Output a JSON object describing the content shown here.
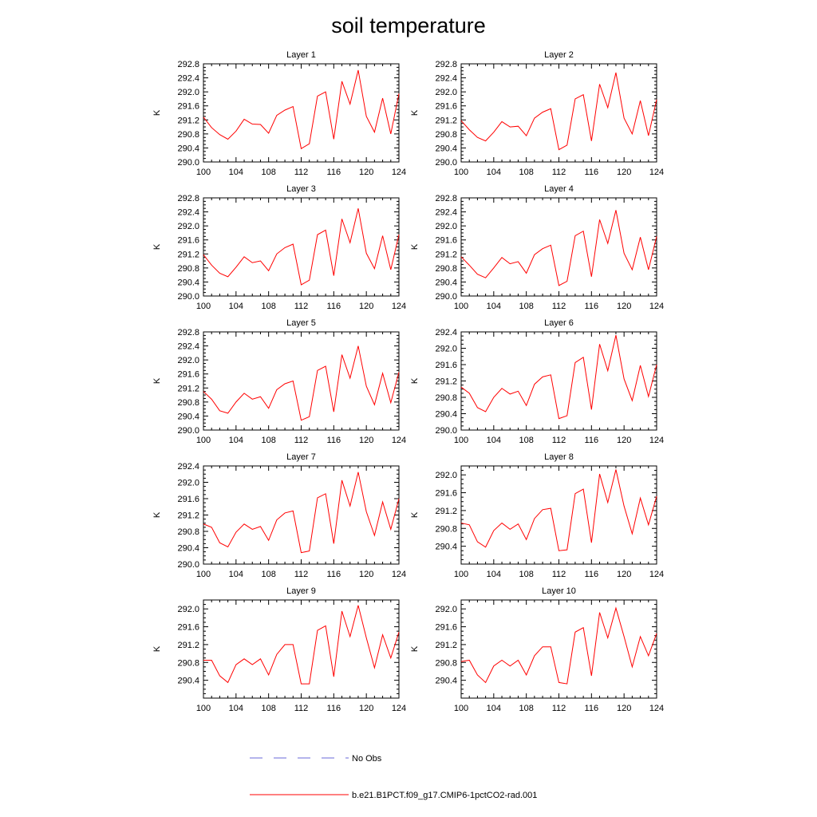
{
  "figure": {
    "title": "soil temperature",
    "legend": [
      {
        "label": "No Obs",
        "color": "#6a6ad8",
        "dash": "dashed"
      },
      {
        "label": "b.e21.B1PCT.f09_g17.CMIP6-1pctCO2-rad.001",
        "color": "#ff0000",
        "dash": "solid"
      }
    ]
  },
  "chart_data": [
    {
      "type": "line",
      "title": "Layer 1",
      "ylabel": "K",
      "xlim": [
        100,
        124
      ],
      "ylim": [
        290.0,
        292.8
      ],
      "xticks": [
        "100",
        "104",
        "108",
        "112",
        "116",
        "120",
        "124"
      ],
      "yticks": [
        "290.0",
        "290.4",
        "290.8",
        "291.2",
        "291.6",
        "292.0",
        "292.4",
        "292.8"
      ],
      "x": [
        100,
        101,
        102,
        103,
        104,
        105,
        106,
        107,
        108,
        109,
        110,
        111,
        112,
        113,
        114,
        115,
        116,
        117,
        118,
        119,
        120,
        121,
        122,
        123,
        124
      ],
      "series": [
        {
          "name": "b.e21.B1PCT.f09_g17.CMIP6-1pctCO2-rad.001",
          "color": "#ff0000",
          "values": [
            291.28,
            290.98,
            290.78,
            290.65,
            290.88,
            291.22,
            291.08,
            291.07,
            290.82,
            291.33,
            291.48,
            291.58,
            290.38,
            290.52,
            291.88,
            292.0,
            290.65,
            292.3,
            291.65,
            292.62,
            291.3,
            290.85,
            291.82,
            290.8,
            291.95
          ]
        }
      ]
    },
    {
      "type": "line",
      "title": "Layer 2",
      "ylabel": "K",
      "xlim": [
        100,
        124
      ],
      "ylim": [
        290.0,
        292.8
      ],
      "xticks": [
        "100",
        "104",
        "108",
        "112",
        "116",
        "120",
        "124"
      ],
      "yticks": [
        "290.0",
        "290.4",
        "290.8",
        "291.2",
        "291.6",
        "292.0",
        "292.4",
        "292.8"
      ],
      "x": [
        100,
        101,
        102,
        103,
        104,
        105,
        106,
        107,
        108,
        109,
        110,
        111,
        112,
        113,
        114,
        115,
        116,
        117,
        118,
        119,
        120,
        121,
        122,
        123,
        124
      ],
      "series": [
        {
          "name": "b.e21.B1PCT.f09_g17.CMIP6-1pctCO2-rad.001",
          "color": "#ff0000",
          "values": [
            291.18,
            290.92,
            290.7,
            290.6,
            290.85,
            291.15,
            291.0,
            291.02,
            290.75,
            291.25,
            291.42,
            291.52,
            290.35,
            290.48,
            291.8,
            291.92,
            290.6,
            292.22,
            291.55,
            292.55,
            291.25,
            290.8,
            291.75,
            290.75,
            291.78
          ]
        }
      ]
    },
    {
      "type": "line",
      "title": "Layer 3",
      "ylabel": "K",
      "xlim": [
        100,
        124
      ],
      "ylim": [
        290.0,
        292.8
      ],
      "xticks": [
        "100",
        "104",
        "108",
        "112",
        "116",
        "120",
        "124"
      ],
      "yticks": [
        "290.0",
        "290.4",
        "290.8",
        "291.2",
        "291.6",
        "292.0",
        "292.4",
        "292.8"
      ],
      "x": [
        100,
        101,
        102,
        103,
        104,
        105,
        106,
        107,
        108,
        109,
        110,
        111,
        112,
        113,
        114,
        115,
        116,
        117,
        118,
        119,
        120,
        121,
        122,
        123,
        124
      ],
      "series": [
        {
          "name": "b.e21.B1PCT.f09_g17.CMIP6-1pctCO2-rad.001",
          "color": "#ff0000",
          "values": [
            291.18,
            290.88,
            290.65,
            290.55,
            290.82,
            291.12,
            290.95,
            291.0,
            290.72,
            291.2,
            291.38,
            291.48,
            290.32,
            290.45,
            291.75,
            291.88,
            290.58,
            292.2,
            291.52,
            292.5,
            291.22,
            290.78,
            291.72,
            290.75,
            291.75
          ]
        }
      ]
    },
    {
      "type": "line",
      "title": "Layer 4",
      "ylabel": "K",
      "xlim": [
        100,
        124
      ],
      "ylim": [
        290.0,
        292.8
      ],
      "xticks": [
        "100",
        "104",
        "108",
        "112",
        "116",
        "120",
        "124"
      ],
      "yticks": [
        "290.0",
        "290.4",
        "290.8",
        "291.2",
        "291.6",
        "292.0",
        "292.4",
        "292.8"
      ],
      "x": [
        100,
        101,
        102,
        103,
        104,
        105,
        106,
        107,
        108,
        109,
        110,
        111,
        112,
        113,
        114,
        115,
        116,
        117,
        118,
        119,
        120,
        121,
        122,
        123,
        124
      ],
      "series": [
        {
          "name": "b.e21.B1PCT.f09_g17.CMIP6-1pctCO2-rad.001",
          "color": "#ff0000",
          "values": [
            291.12,
            290.88,
            290.62,
            290.52,
            290.8,
            291.1,
            290.92,
            290.98,
            290.65,
            291.18,
            291.35,
            291.45,
            290.3,
            290.42,
            291.72,
            291.85,
            290.55,
            292.18,
            291.5,
            292.45,
            291.22,
            290.75,
            291.68,
            290.75,
            291.7
          ]
        }
      ]
    },
    {
      "type": "line",
      "title": "Layer 5",
      "ylabel": "K",
      "xlim": [
        100,
        124
      ],
      "ylim": [
        290.0,
        292.8
      ],
      "xticks": [
        "100",
        "104",
        "108",
        "112",
        "116",
        "120",
        "124"
      ],
      "yticks": [
        "290.0",
        "290.4",
        "290.8",
        "291.2",
        "291.6",
        "292.0",
        "292.4",
        "292.8"
      ],
      "x": [
        100,
        101,
        102,
        103,
        104,
        105,
        106,
        107,
        108,
        109,
        110,
        111,
        112,
        113,
        114,
        115,
        116,
        117,
        118,
        119,
        120,
        121,
        122,
        123,
        124
      ],
      "series": [
        {
          "name": "b.e21.B1PCT.f09_g17.CMIP6-1pctCO2-rad.001",
          "color": "#ff0000",
          "values": [
            291.1,
            290.88,
            290.55,
            290.48,
            290.8,
            291.05,
            290.88,
            290.95,
            290.62,
            291.15,
            291.32,
            291.4,
            290.28,
            290.38,
            291.7,
            291.82,
            290.52,
            292.15,
            291.48,
            292.4,
            291.25,
            290.72,
            291.62,
            290.78,
            291.65
          ]
        }
      ]
    },
    {
      "type": "line",
      "title": "Layer 6",
      "ylabel": "K",
      "xlim": [
        100,
        124
      ],
      "ylim": [
        290.0,
        292.4
      ],
      "xticks": [
        "100",
        "104",
        "108",
        "112",
        "116",
        "120",
        "124"
      ],
      "yticks": [
        "290.0",
        "290.4",
        "290.8",
        "291.2",
        "291.6",
        "292.0",
        "292.4"
      ],
      "x": [
        100,
        101,
        102,
        103,
        104,
        105,
        106,
        107,
        108,
        109,
        110,
        111,
        112,
        113,
        114,
        115,
        116,
        117,
        118,
        119,
        120,
        121,
        122,
        123,
        124
      ],
      "series": [
        {
          "name": "b.e21.B1PCT.f09_g17.CMIP6-1pctCO2-rad.001",
          "color": "#ff0000",
          "values": [
            291.05,
            290.9,
            290.55,
            290.45,
            290.8,
            291.02,
            290.88,
            290.95,
            290.6,
            291.12,
            291.3,
            291.35,
            290.28,
            290.35,
            291.65,
            291.78,
            290.5,
            292.1,
            291.45,
            292.32,
            291.25,
            290.72,
            291.58,
            290.82,
            291.6
          ]
        }
      ]
    },
    {
      "type": "line",
      "title": "Layer 7",
      "ylabel": "K",
      "xlim": [
        100,
        124
      ],
      "ylim": [
        290.0,
        292.4
      ],
      "xticks": [
        "100",
        "104",
        "108",
        "112",
        "116",
        "120",
        "124"
      ],
      "yticks": [
        "290.0",
        "290.4",
        "290.8",
        "291.2",
        "291.6",
        "292.0",
        "292.4"
      ],
      "x": [
        100,
        101,
        102,
        103,
        104,
        105,
        106,
        107,
        108,
        109,
        110,
        111,
        112,
        113,
        114,
        115,
        116,
        117,
        118,
        119,
        120,
        121,
        122,
        123,
        124
      ],
      "series": [
        {
          "name": "b.e21.B1PCT.f09_g17.CMIP6-1pctCO2-rad.001",
          "color": "#ff0000",
          "values": [
            290.98,
            290.9,
            290.52,
            290.42,
            290.78,
            290.98,
            290.85,
            290.92,
            290.58,
            291.08,
            291.25,
            291.3,
            290.28,
            290.32,
            291.62,
            291.72,
            290.5,
            292.05,
            291.42,
            292.25,
            291.28,
            290.7,
            291.52,
            290.85,
            291.6
          ]
        }
      ]
    },
    {
      "type": "line",
      "title": "Layer 8",
      "ylabel": "K",
      "xlim": [
        100,
        124
      ],
      "ylim": [
        290.0,
        292.2
      ],
      "xticks": [
        "100",
        "104",
        "108",
        "112",
        "116",
        "120",
        "124"
      ],
      "yticks": [
        "290.4",
        "290.8",
        "291.2",
        "291.6",
        "292.0"
      ],
      "x": [
        100,
        101,
        102,
        103,
        104,
        105,
        106,
        107,
        108,
        109,
        110,
        111,
        112,
        113,
        114,
        115,
        116,
        117,
        118,
        119,
        120,
        121,
        122,
        123,
        124
      ],
      "series": [
        {
          "name": "b.e21.B1PCT.f09_g17.CMIP6-1pctCO2-rad.001",
          "color": "#ff0000",
          "values": [
            290.92,
            290.88,
            290.5,
            290.38,
            290.75,
            290.92,
            290.78,
            290.9,
            290.55,
            291.02,
            291.22,
            291.25,
            290.3,
            290.32,
            291.58,
            291.68,
            290.48,
            292.02,
            291.38,
            292.12,
            291.3,
            290.68,
            291.48,
            290.88,
            291.52
          ]
        }
      ]
    },
    {
      "type": "line",
      "title": "Layer 9",
      "ylabel": "K",
      "xlim": [
        100,
        124
      ],
      "ylim": [
        290.0,
        292.2
      ],
      "xticks": [
        "100",
        "104",
        "108",
        "112",
        "116",
        "120",
        "124"
      ],
      "yticks": [
        "290.4",
        "290.8",
        "291.2",
        "291.6",
        "292.0"
      ],
      "x": [
        100,
        101,
        102,
        103,
        104,
        105,
        106,
        107,
        108,
        109,
        110,
        111,
        112,
        113,
        114,
        115,
        116,
        117,
        118,
        119,
        120,
        121,
        122,
        123,
        124
      ],
      "series": [
        {
          "name": "b.e21.B1PCT.f09_g17.CMIP6-1pctCO2-rad.001",
          "color": "#ff0000",
          "values": [
            290.85,
            290.85,
            290.5,
            290.35,
            290.75,
            290.88,
            290.75,
            290.88,
            290.52,
            290.98,
            291.2,
            291.2,
            290.32,
            290.32,
            291.52,
            291.62,
            290.48,
            291.95,
            291.38,
            292.08,
            291.35,
            290.68,
            291.42,
            290.9,
            291.48
          ]
        }
      ]
    },
    {
      "type": "line",
      "title": "Layer 10",
      "ylabel": "K",
      "xlim": [
        100,
        124
      ],
      "ylim": [
        290.0,
        292.2
      ],
      "xticks": [
        "100",
        "104",
        "108",
        "112",
        "116",
        "120",
        "124"
      ],
      "yticks": [
        "290.4",
        "290.8",
        "291.2",
        "291.6",
        "292.0"
      ],
      "x": [
        100,
        101,
        102,
        103,
        104,
        105,
        106,
        107,
        108,
        109,
        110,
        111,
        112,
        113,
        114,
        115,
        116,
        117,
        118,
        119,
        120,
        121,
        122,
        123,
        124
      ],
      "series": [
        {
          "name": "b.e21.B1PCT.f09_g17.CMIP6-1pctCO2-rad.001",
          "color": "#ff0000",
          "values": [
            290.82,
            290.85,
            290.52,
            290.35,
            290.72,
            290.85,
            290.72,
            290.85,
            290.52,
            290.95,
            291.15,
            291.15,
            290.35,
            290.32,
            291.48,
            291.58,
            290.5,
            291.92,
            291.35,
            292.02,
            291.38,
            290.7,
            291.38,
            290.95,
            291.45
          ]
        }
      ]
    }
  ]
}
